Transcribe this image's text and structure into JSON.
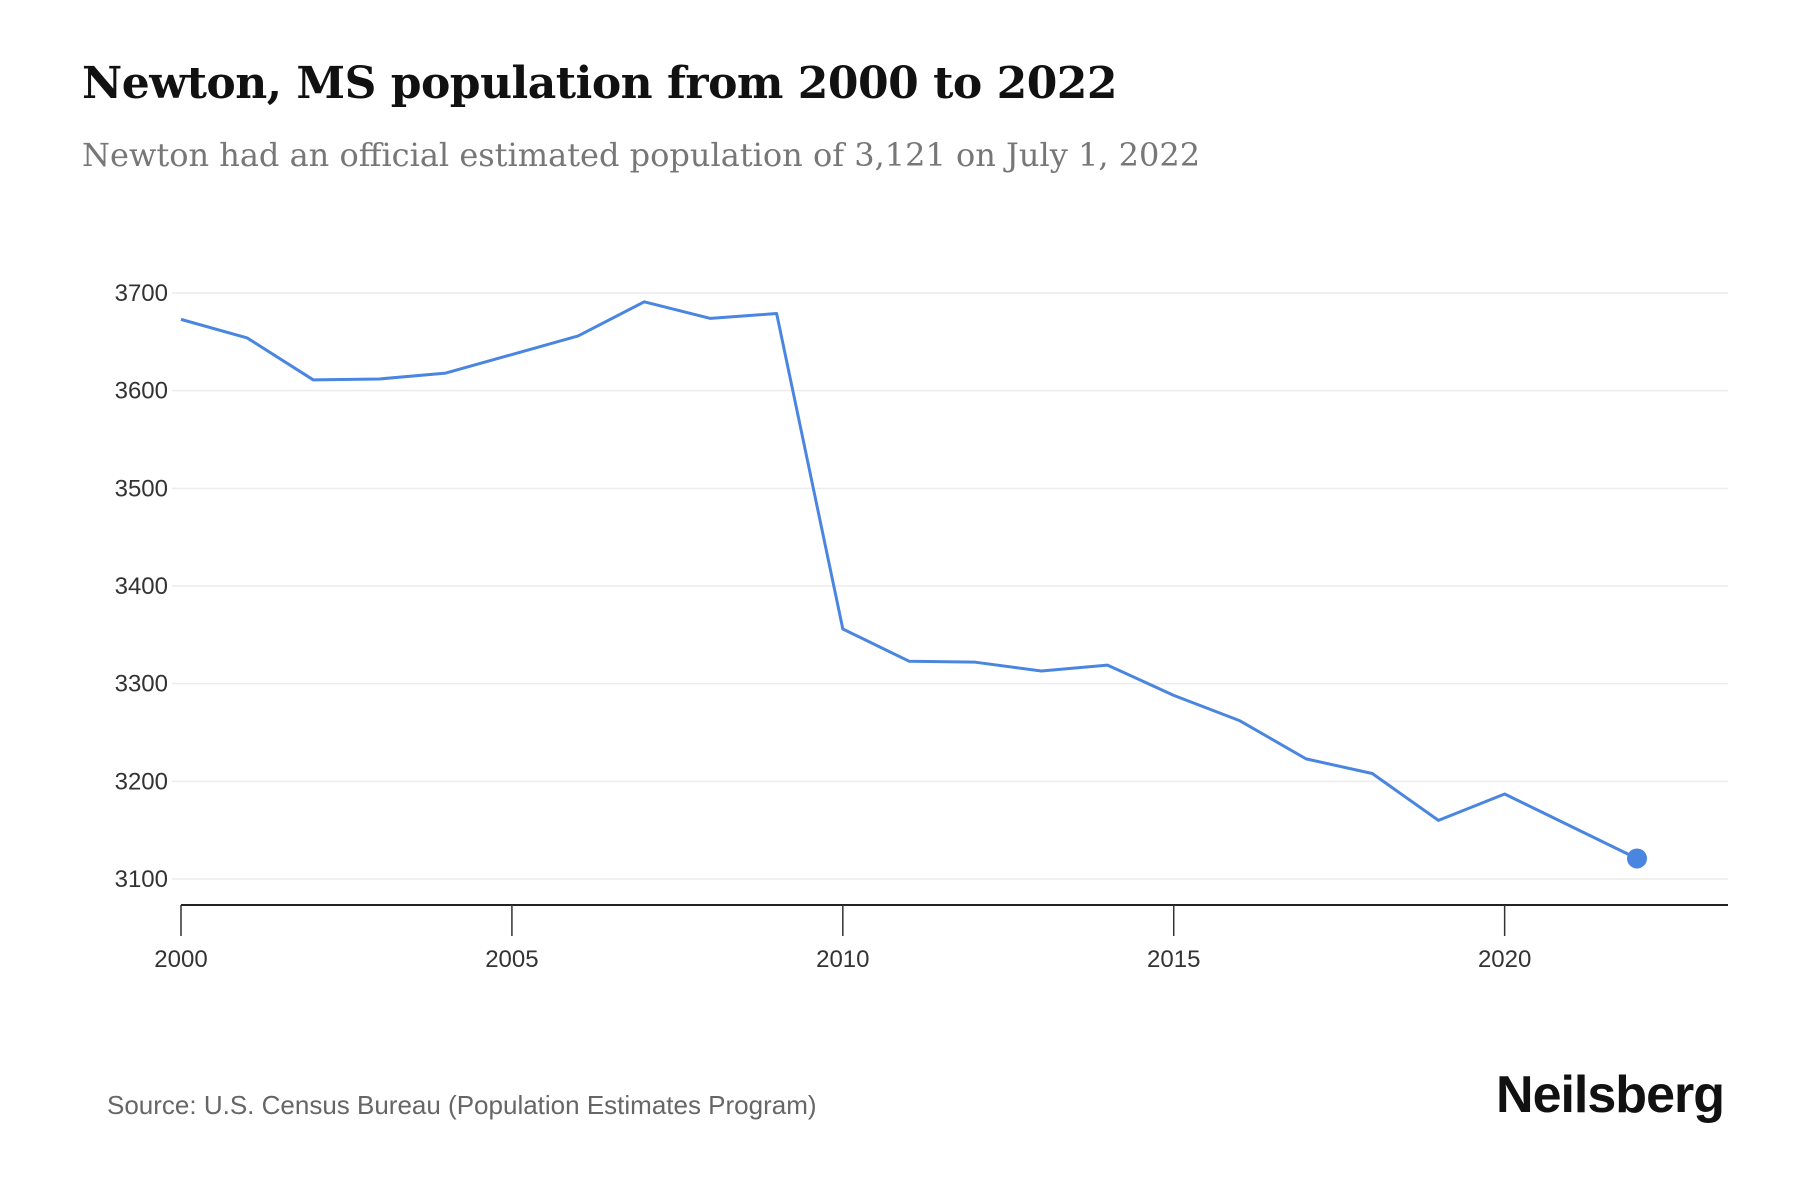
{
  "title": "Newton, MS population from 2000 to 2022",
  "subtitle": "Newton had an official estimated population of 3,121 on July 1, 2022",
  "source": "Source: U.S. Census Bureau (Population Estimates Program)",
  "logo": "Neilsberg",
  "chart_data": {
    "type": "line",
    "title": "Newton, MS population from 2000 to 2022",
    "xlabel": "",
    "ylabel": "",
    "x": [
      2000,
      2001,
      2002,
      2003,
      2004,
      2005,
      2006,
      2007,
      2008,
      2009,
      2010,
      2011,
      2012,
      2013,
      2014,
      2015,
      2016,
      2017,
      2018,
      2019,
      2020,
      2021,
      2022
    ],
    "series": [
      {
        "values": [
          3673,
          3654,
          3611,
          3612,
          3618,
          3637,
          3656,
          3691,
          3674,
          3679,
          3356,
          3323,
          3322,
          3313,
          3319,
          3288,
          3262,
          3223,
          3208,
          3160,
          3187,
          3154,
          3121
        ]
      }
    ],
    "xlim": [
      2000,
      2023.4
    ],
    "ylim": [
      3100,
      3700
    ],
    "xticks": [
      "2000",
      "2005",
      "2010",
      "2015",
      "2020"
    ],
    "yticks": [
      "3100",
      "3200",
      "3300",
      "3400",
      "3500",
      "3600",
      "3700"
    ],
    "grid": true,
    "legend": "none",
    "line_color": "#4a86e0",
    "highlight_last_point": true
  }
}
